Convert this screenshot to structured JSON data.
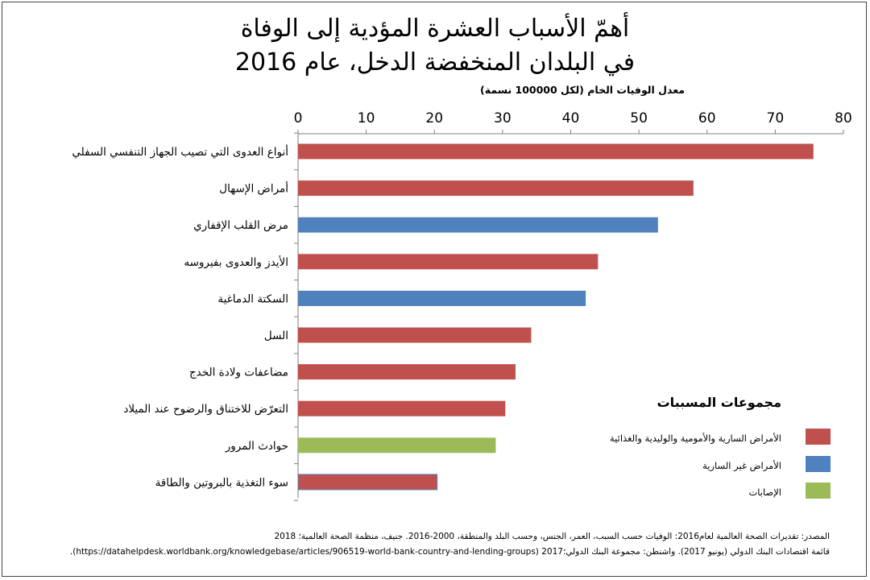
{
  "title_line1": "أهمّ الأسباب العشرة المؤدية إلى الوفاة",
  "title_line2": "في البلدان المنخفضة الدخل، عام 2016",
  "chart_data": {
    "type": "bar",
    "orientation": "horizontal",
    "xlabel": "معدل الوفيات الخام (لكل 100000 نسمة)",
    "xlim": [
      0,
      80
    ],
    "ticks": [
      0,
      10,
      20,
      30,
      40,
      50,
      60,
      70,
      80
    ],
    "categories": [
      "أنواع العدوى التي تصيب الجهاز التنفسي السفلي",
      "أمراض الإسهال",
      "مرض القلب الإقفاري",
      "الأيدز والعدوى بفيروسه",
      "السكتة الدماغية",
      "السل",
      "مضاعفات ولادة الخدج",
      "التعرّض للاختناق والرضوح عند الميلاد",
      "حوادث المرور",
      "سوء التغذية بالبروتين والطاقة"
    ],
    "values": [
      75.6,
      58,
      52.8,
      44,
      42.2,
      34.2,
      31.9,
      30.4,
      29,
      20.4
    ],
    "groups": [
      "communicable",
      "communicable",
      "noncommunicable",
      "communicable",
      "noncommunicable",
      "communicable",
      "communicable",
      "communicable",
      "injuries",
      "communicable"
    ],
    "colors": {
      "communicable": "#c0504d",
      "noncommunicable": "#4f81bd",
      "injuries": "#9bbb59"
    },
    "legend_title": "مجموعات المسببات",
    "legend": [
      {
        "key": "communicable",
        "label": "الأمراض السارية والأمومية والوليدية والغذائية"
      },
      {
        "key": "noncommunicable",
        "label": "الأمراض غير السارية"
      },
      {
        "key": "injuries",
        "label": "الإصابات"
      }
    ],
    "grid": false
  },
  "source_line1": "المصدر: تقديرات الصحة العالمية لعام2016: الوفيات حسب السبب، العمر، الجنس، وحسب البلد والمنطقة، 2000-2016. جنيف، منظمة الصحة العالمية؛ 2018",
  "source_line2": "قائمة اقتصادات البنك الدولي (يونيو 2017). واشنطن: مجموعة البنك الدولي؛2017 (https://datahelpdesk.worldbank.org/knowledgebase/articles/906519-world-bank-country-and-lending-groups)."
}
